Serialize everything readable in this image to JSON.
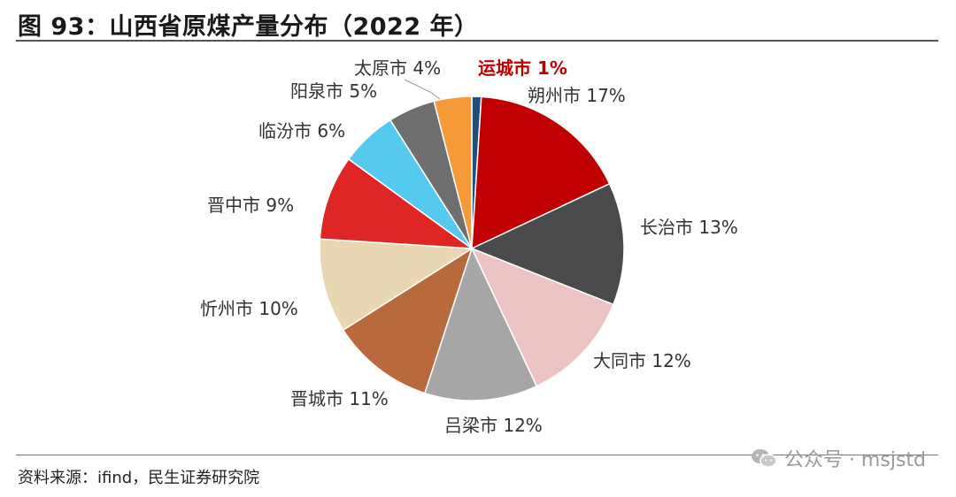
{
  "header": {
    "title": "图 93：山西省原煤产量分布（2022 年）"
  },
  "footer": {
    "source": "资料来源：ifind，民生证券研究院",
    "watermark": "公众号 · msjstd"
  },
  "chart_data": {
    "type": "pie",
    "title": "山西省原煤产量分布（2022 年）",
    "start": "12 o'clock",
    "direction": "clockwise",
    "slices": [
      {
        "name": "运城市",
        "value": 1,
        "label": "运城市 1%",
        "color": "#1f4e79",
        "emphasized": true
      },
      {
        "name": "朔州市",
        "value": 17,
        "label": "朔州市 17%",
        "color": "#c00000"
      },
      {
        "name": "长治市",
        "value": 13,
        "label": "长治市 13%",
        "color": "#4a4a4c"
      },
      {
        "name": "大同市",
        "value": 12,
        "label": "大同市 12%",
        "color": "#ecc4c4"
      },
      {
        "name": "吕梁市",
        "value": 12,
        "label": "吕梁市 12%",
        "color": "#a6a6a6"
      },
      {
        "name": "晋城市",
        "value": 11,
        "label": "晋城市 11%",
        "color": "#b86a3c"
      },
      {
        "name": "忻州市",
        "value": 10,
        "label": "忻州市 10%",
        "color": "#e8d7b2"
      },
      {
        "name": "晋中市",
        "value": 9,
        "label": "晋中市 9%",
        "color": "#e02525"
      },
      {
        "name": "临汾市",
        "value": 6,
        "label": "临汾市 6%",
        "color": "#56c9f0"
      },
      {
        "name": "阳泉市",
        "value": 5,
        "label": "阳泉市 5%",
        "color": "#6f6f6f"
      },
      {
        "name": "太原市",
        "value": 4,
        "label": "太原市 4%",
        "color": "#f59a36"
      }
    ]
  }
}
